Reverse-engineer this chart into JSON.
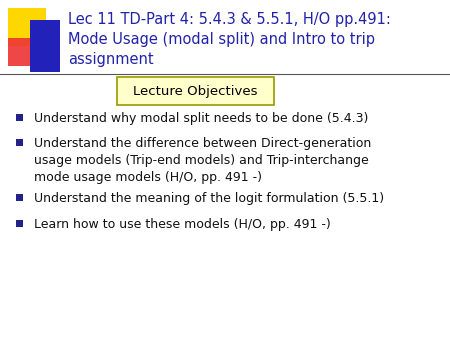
{
  "title_line1": "Lec 11 TD-Part 4: 5.4.3 & 5.5.1, H/O pp.491:",
  "title_line2": "Mode Usage (modal split) and Intro to trip",
  "title_line3": "assignment",
  "title_color": "#2222AA",
  "title_fontsize": 10.5,
  "lecture_objectives_label": "Lecture Objectives",
  "lecture_objectives_bg": "#FFFFCC",
  "lecture_objectives_border": "#999900",
  "bullet_color": "#22228A",
  "bullet_text_color": "#111111",
  "bullet_fontsize": 9.0,
  "bullets": [
    "Understand why modal split needs to be done (5.4.3)",
    "Understand the difference between Direct-generation\nusage models (Trip-end models) and Trip-interchange\nmode usage models (H/O, pp. 491 -)",
    "Understand the meaning of the logit formulation (5.5.1)",
    "Learn how to use these models (H/O, pp. 491 -)"
  ],
  "background_color": "#FFFFFF",
  "deco_yellow": "#FFD700",
  "deco_red": "#EE3333",
  "deco_blue": "#2222BB",
  "deco_line_color": "#555555"
}
